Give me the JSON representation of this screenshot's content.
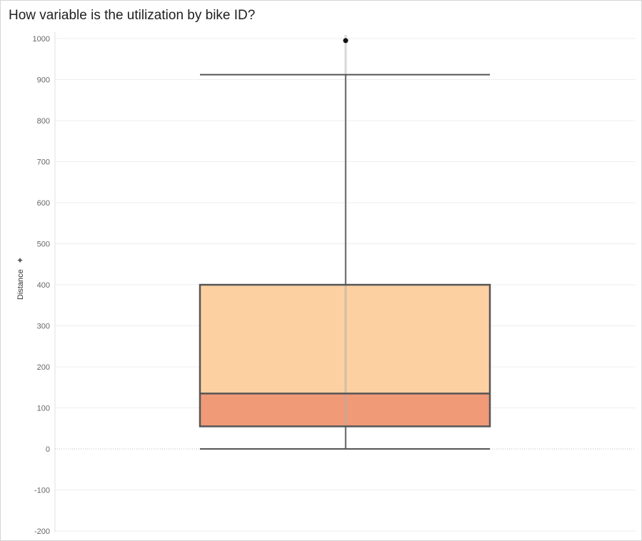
{
  "chart_data": {
    "type": "box",
    "title": "How variable is the utilization by bike ID?",
    "ylabel": "Distance",
    "ylabel_icon": "pin-icon",
    "ylim": [
      -215,
      1015
    ],
    "yticks": [
      1000,
      900,
      800,
      700,
      600,
      500,
      400,
      300,
      200,
      100,
      0,
      -100,
      -200
    ],
    "box": {
      "whisker_low": 0,
      "q1": 55,
      "median": 135,
      "q3": 400,
      "whisker_high": 912
    },
    "outliers": [
      995
    ],
    "colors": {
      "upper_box": "#fdd0a2",
      "lower_box": "#f09a77",
      "box_border": "#555555",
      "whisker": "#555555",
      "points": "#b0b0b0",
      "gridline": "#eeeeee"
    }
  }
}
